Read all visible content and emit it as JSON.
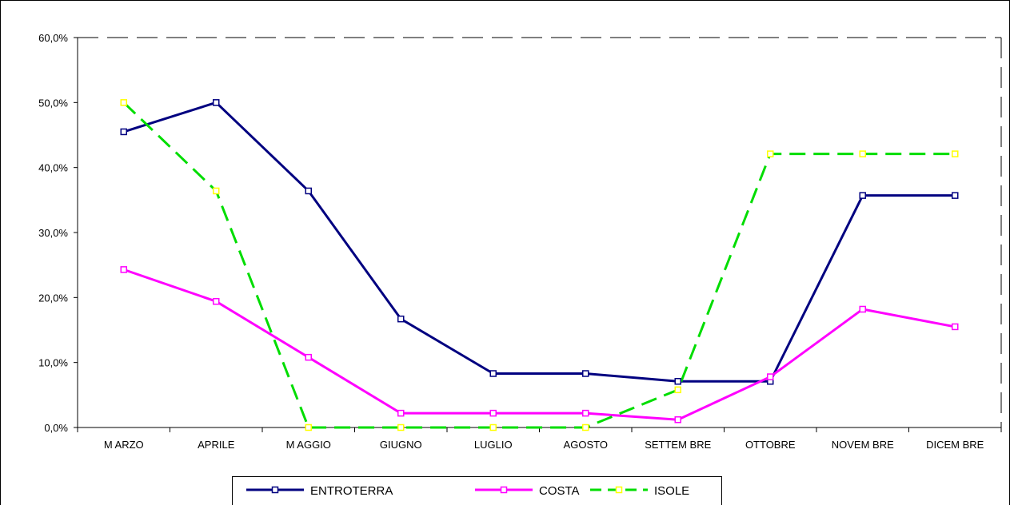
{
  "chart_data": {
    "type": "line",
    "categories": [
      "MARZO",
      "APRILE",
      "MAGGIO",
      "GIUGNO",
      "LUGLIO",
      "AGOSTO",
      "SETTEMBRE",
      "OTTOBRE",
      "NOVEMBRE",
      "DICEMBRE"
    ],
    "category_labels": [
      "M ARZO",
      "APRILE",
      "M AGGIO",
      "GIUGNO",
      "LUGLIO",
      "AGOSTO",
      "SETTEM BRE",
      "OTTOBRE",
      "NOVEM BRE",
      "DICEM BRE"
    ],
    "series": [
      {
        "name": "ENTROTERRA",
        "values": [
          45.5,
          50.0,
          36.4,
          16.7,
          8.3,
          8.3,
          7.1,
          7.1,
          35.7,
          35.7
        ],
        "color": "#000080",
        "marker_color": "#000080",
        "dashed": false
      },
      {
        "name": "COSTA",
        "values": [
          24.3,
          19.4,
          10.8,
          2.2,
          2.2,
          2.2,
          1.2,
          7.8,
          18.2,
          15.5
        ],
        "color": "#ff00ff",
        "marker_color": "#ff00ff",
        "dashed": false
      },
      {
        "name": "ISOLE",
        "values": [
          50.0,
          36.4,
          0.0,
          0.0,
          0.0,
          0.0,
          5.8,
          42.1,
          42.1,
          42.1
        ],
        "color": "#00dd00",
        "marker_color": "#ffff00",
        "dashed": true
      }
    ],
    "y_ticks": [
      "0,0%",
      "10,0%",
      "20,0%",
      "30,0%",
      "40,0%",
      "50,0%",
      "60,0%"
    ],
    "ylim": [
      0,
      60
    ],
    "grid": false,
    "legend_position": "bottom",
    "title": "",
    "xlabel": "",
    "ylabel": ""
  }
}
